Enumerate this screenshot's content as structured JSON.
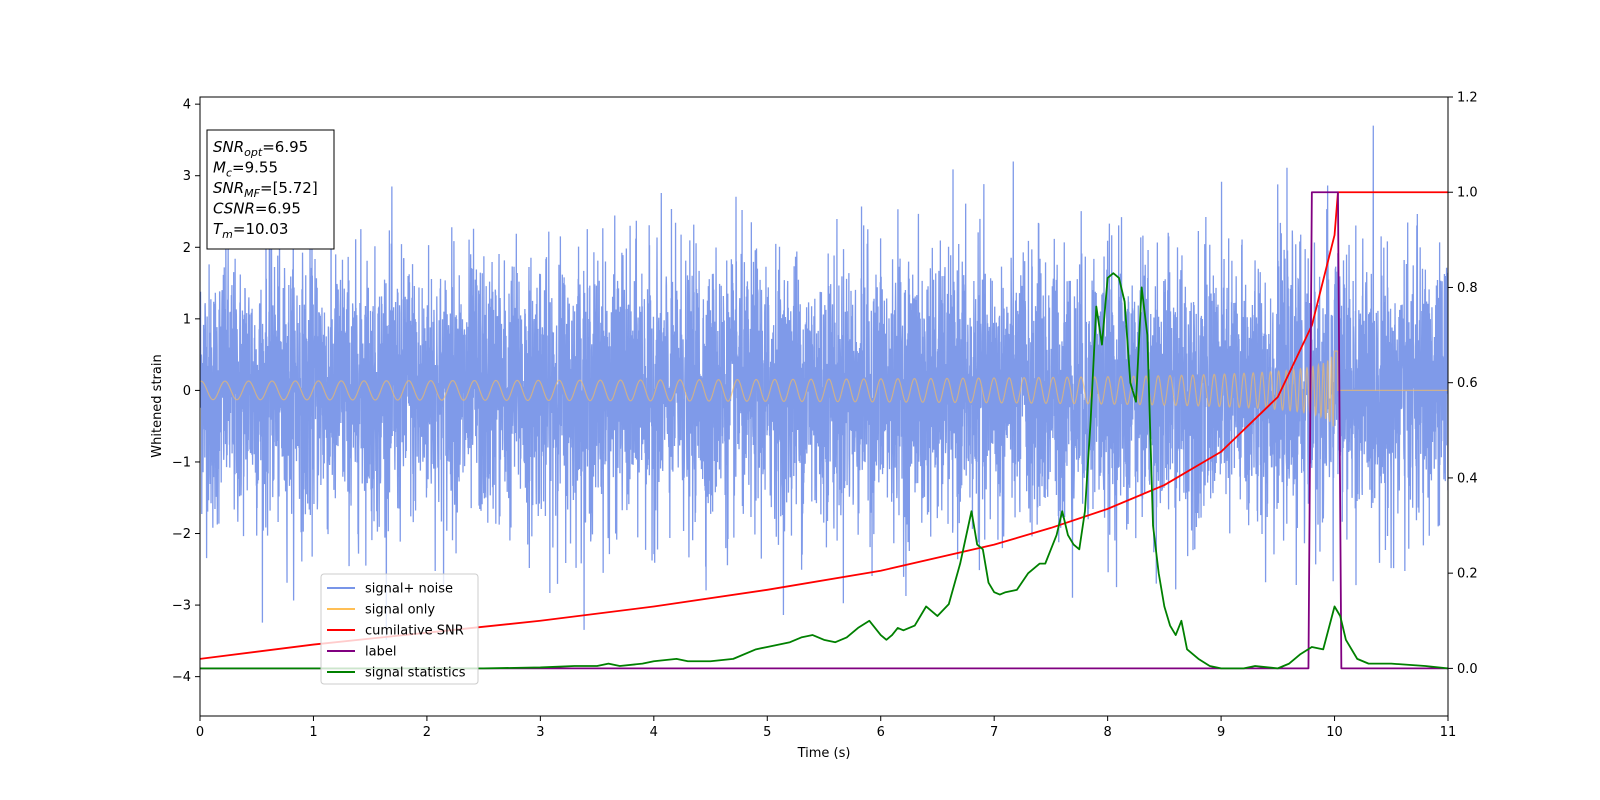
{
  "chart_data": {
    "type": "line",
    "xlabel": "Time (s)",
    "ylabel": "Whitened strain",
    "xlim": [
      0,
      11
    ],
    "ylim_left": [
      -4.55,
      4.1
    ],
    "ylim_right": [
      -0.1,
      1.2
    ],
    "x_ticks": [
      "0",
      "1",
      "2",
      "3",
      "4",
      "5",
      "6",
      "7",
      "8",
      "9",
      "10",
      "11"
    ],
    "y_ticks_left": [
      "−4",
      "−3",
      "−2",
      "−1",
      "0",
      "1",
      "2",
      "3",
      "4"
    ],
    "y_ticks_right": [
      "0.0",
      "0.2",
      "0.4",
      "0.6",
      "0.8",
      "1.0",
      "1.2"
    ],
    "legend": {
      "placement": "lower-left",
      "entries": [
        {
          "label": "signal+ noise",
          "color": "#7895e8"
        },
        {
          "label": "signal only",
          "color": "#ffbf55"
        },
        {
          "label": "cumilative SNR",
          "color": "#ff0000"
        },
        {
          "label": "label",
          "color": "#800080"
        },
        {
          "label": "signal statistics",
          "color": "#008000"
        }
      ]
    },
    "annotation": {
      "placement": "top-left",
      "lines": [
        {
          "symbol": "SNR",
          "sub": "opt",
          "value": "=6.95"
        },
        {
          "symbol": "M",
          "sub": "c",
          "value": "=9.55"
        },
        {
          "symbol": "SNR",
          "sub": "MF",
          "value": "=[5.72]"
        },
        {
          "symbol": "CSNR",
          "sub": "",
          "value": "=6.95"
        },
        {
          "symbol": "T",
          "sub": "m",
          "value": "=10.03"
        }
      ]
    },
    "series": [
      {
        "name": "signal+ noise",
        "axis": "left",
        "color": "#7895e8",
        "noise_std": 0.9,
        "range_approx": [
          -4.15,
          3.7
        ],
        "x_range": [
          0,
          11
        ]
      },
      {
        "name": "signal only",
        "axis": "left",
        "color": "#ffbf55",
        "chirp_end": 10.03,
        "amplitude_at_end": 0.55
      },
      {
        "name": "cumilative SNR",
        "axis": "right",
        "color": "#ff0000",
        "x": [
          0,
          1,
          2,
          3,
          4,
          5,
          6,
          7,
          7.5,
          8,
          8.5,
          9,
          9.5,
          9.8,
          10,
          10.03,
          10.05,
          11
        ],
        "y": [
          0.02,
          0.05,
          0.075,
          0.1,
          0.13,
          0.165,
          0.205,
          0.26,
          0.295,
          0.335,
          0.385,
          0.455,
          0.57,
          0.72,
          0.91,
          1.0,
          1.0,
          1.0
        ]
      },
      {
        "name": "label",
        "axis": "right",
        "color": "#800080",
        "x": [
          0,
          9.77,
          9.8,
          10.03,
          10.06,
          11
        ],
        "y": [
          0,
          0,
          1,
          1,
          0,
          0
        ]
      },
      {
        "name": "signal statistics",
        "axis": "right",
        "color": "#008000",
        "x": [
          0,
          0.5,
          1,
          1.5,
          2,
          2.5,
          3,
          3.3,
          3.5,
          3.6,
          3.7,
          3.9,
          4,
          4.2,
          4.3,
          4.5,
          4.7,
          4.9,
          5,
          5.1,
          5.2,
          5.3,
          5.4,
          5.5,
          5.6,
          5.7,
          5.8,
          5.9,
          6,
          6.05,
          6.1,
          6.15,
          6.2,
          6.3,
          6.4,
          6.5,
          6.6,
          6.7,
          6.8,
          6.85,
          6.9,
          6.95,
          7,
          7.05,
          7.1,
          7.2,
          7.3,
          7.4,
          7.45,
          7.5,
          7.55,
          7.6,
          7.65,
          7.7,
          7.75,
          7.8,
          7.85,
          7.9,
          7.95,
          8,
          8.05,
          8.1,
          8.15,
          8.2,
          8.25,
          8.3,
          8.35,
          8.4,
          8.45,
          8.5,
          8.55,
          8.6,
          8.65,
          8.7,
          8.75,
          8.8,
          8.9,
          9,
          9.1,
          9.2,
          9.3,
          9.5,
          9.6,
          9.7,
          9.8,
          9.9,
          10,
          10.05,
          10.1,
          10.2,
          10.3,
          10.5,
          10.8,
          11
        ],
        "y": [
          0.0,
          0.0,
          0.0,
          0.0,
          0.0,
          0.0,
          0.002,
          0.005,
          0.005,
          0.01,
          0.005,
          0.01,
          0.015,
          0.02,
          0.015,
          0.015,
          0.02,
          0.04,
          0.045,
          0.05,
          0.055,
          0.065,
          0.07,
          0.06,
          0.055,
          0.065,
          0.085,
          0.1,
          0.07,
          0.06,
          0.07,
          0.085,
          0.08,
          0.09,
          0.13,
          0.11,
          0.135,
          0.22,
          0.33,
          0.26,
          0.25,
          0.18,
          0.16,
          0.155,
          0.16,
          0.165,
          0.2,
          0.22,
          0.22,
          0.25,
          0.28,
          0.33,
          0.28,
          0.26,
          0.25,
          0.33,
          0.52,
          0.76,
          0.68,
          0.82,
          0.83,
          0.82,
          0.77,
          0.6,
          0.56,
          0.8,
          0.7,
          0.3,
          0.2,
          0.13,
          0.09,
          0.07,
          0.1,
          0.04,
          0.03,
          0.02,
          0.005,
          0.0,
          0.0,
          0.0,
          0.005,
          0.0,
          0.01,
          0.03,
          0.045,
          0.04,
          0.13,
          0.11,
          0.06,
          0.02,
          0.01,
          0.01,
          0.005,
          0.0
        ]
      }
    ]
  }
}
